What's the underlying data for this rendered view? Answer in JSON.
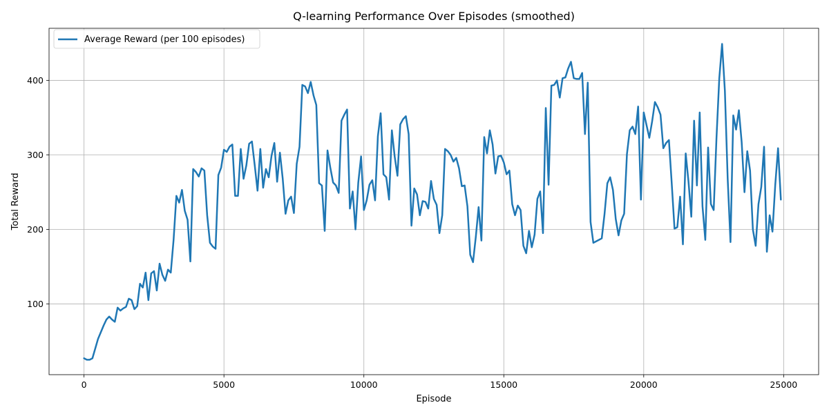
{
  "chart_data": {
    "type": "line",
    "title": "Q-learning Performance Over Episodes (smoothed)",
    "xlabel": "Episode",
    "ylabel": "Total Reward",
    "xlim": [
      -1250,
      26250
    ],
    "ylim": [
      5,
      470
    ],
    "xticks": [
      0,
      5000,
      10000,
      15000,
      20000,
      25000
    ],
    "yticks": [
      100,
      200,
      300,
      400
    ],
    "grid": true,
    "legend_location": "upper-left",
    "series": [
      {
        "name": "Average Reward (per 100 episodes)",
        "color": "#1f77b4",
        "points": [
          [
            0,
            27
          ],
          [
            100,
            25
          ],
          [
            200,
            25
          ],
          [
            300,
            27
          ],
          [
            400,
            40
          ],
          [
            500,
            53
          ],
          [
            600,
            62
          ],
          [
            700,
            71
          ],
          [
            800,
            79
          ],
          [
            900,
            83
          ],
          [
            1000,
            79
          ],
          [
            1100,
            76
          ],
          [
            1200,
            95
          ],
          [
            1300,
            91
          ],
          [
            1400,
            94
          ],
          [
            1500,
            96
          ],
          [
            1600,
            107
          ],
          [
            1700,
            105
          ],
          [
            1800,
            93
          ],
          [
            1900,
            97
          ],
          [
            2000,
            127
          ],
          [
            2100,
            122
          ],
          [
            2200,
            142
          ],
          [
            2300,
            105
          ],
          [
            2400,
            141
          ],
          [
            2500,
            144
          ],
          [
            2600,
            118
          ],
          [
            2700,
            154
          ],
          [
            2800,
            139
          ],
          [
            2900,
            131
          ],
          [
            3000,
            146
          ],
          [
            3100,
            142
          ],
          [
            3200,
            186
          ],
          [
            3300,
            245
          ],
          [
            3400,
            236
          ],
          [
            3500,
            253
          ],
          [
            3600,
            225
          ],
          [
            3700,
            213
          ],
          [
            3800,
            157
          ],
          [
            3900,
            281
          ],
          [
            4000,
            277
          ],
          [
            4100,
            271
          ],
          [
            4200,
            282
          ],
          [
            4300,
            279
          ],
          [
            4400,
            219
          ],
          [
            4500,
            182
          ],
          [
            4600,
            177
          ],
          [
            4700,
            174
          ],
          [
            4800,
            273
          ],
          [
            4900,
            283
          ],
          [
            5000,
            307
          ],
          [
            5100,
            304
          ],
          [
            5200,
            311
          ],
          [
            5300,
            314
          ],
          [
            5400,
            245
          ],
          [
            5500,
            245
          ],
          [
            5600,
            308
          ],
          [
            5700,
            268
          ],
          [
            5800,
            286
          ],
          [
            5900,
            315
          ],
          [
            6000,
            318
          ],
          [
            6100,
            286
          ],
          [
            6200,
            252
          ],
          [
            6300,
            308
          ],
          [
            6400,
            256
          ],
          [
            6500,
            281
          ],
          [
            6600,
            270
          ],
          [
            6700,
            299
          ],
          [
            6800,
            316
          ],
          [
            6900,
            264
          ],
          [
            7000,
            303
          ],
          [
            7100,
            268
          ],
          [
            7200,
            221
          ],
          [
            7300,
            239
          ],
          [
            7400,
            244
          ],
          [
            7500,
            222
          ],
          [
            7600,
            288
          ],
          [
            7700,
            311
          ],
          [
            7800,
            394
          ],
          [
            7900,
            392
          ],
          [
            8000,
            383
          ],
          [
            8100,
            398
          ],
          [
            8200,
            380
          ],
          [
            8300,
            367
          ],
          [
            8400,
            262
          ],
          [
            8500,
            259
          ],
          [
            8600,
            198
          ],
          [
            8700,
            306
          ],
          [
            8800,
            283
          ],
          [
            8900,
            263
          ],
          [
            9000,
            259
          ],
          [
            9100,
            249
          ],
          [
            9200,
            346
          ],
          [
            9300,
            354
          ],
          [
            9400,
            361
          ],
          [
            9500,
            228
          ],
          [
            9600,
            251
          ],
          [
            9700,
            200
          ],
          [
            9800,
            263
          ],
          [
            9900,
            298
          ],
          [
            10000,
            226
          ],
          [
            10100,
            239
          ],
          [
            10200,
            260
          ],
          [
            10300,
            266
          ],
          [
            10400,
            239
          ],
          [
            10500,
            325
          ],
          [
            10600,
            356
          ],
          [
            10700,
            274
          ],
          [
            10800,
            270
          ],
          [
            10900,
            240
          ],
          [
            11000,
            333
          ],
          [
            11100,
            298
          ],
          [
            11200,
            272
          ],
          [
            11300,
            341
          ],
          [
            11400,
            348
          ],
          [
            11500,
            352
          ],
          [
            11600,
            328
          ],
          [
            11700,
            205
          ],
          [
            11800,
            255
          ],
          [
            11900,
            247
          ],
          [
            12000,
            219
          ],
          [
            12100,
            238
          ],
          [
            12200,
            237
          ],
          [
            12300,
            228
          ],
          [
            12400,
            265
          ],
          [
            12500,
            241
          ],
          [
            12600,
            233
          ],
          [
            12700,
            195
          ],
          [
            12800,
            219
          ],
          [
            12900,
            308
          ],
          [
            13000,
            305
          ],
          [
            13100,
            300
          ],
          [
            13200,
            291
          ],
          [
            13300,
            296
          ],
          [
            13400,
            282
          ],
          [
            13500,
            258
          ],
          [
            13600,
            259
          ],
          [
            13700,
            231
          ],
          [
            13800,
            166
          ],
          [
            13900,
            156
          ],
          [
            14000,
            190
          ],
          [
            14100,
            230
          ],
          [
            14200,
            185
          ],
          [
            14300,
            324
          ],
          [
            14400,
            302
          ],
          [
            14500,
            333
          ],
          [
            14600,
            314
          ],
          [
            14700,
            275
          ],
          [
            14800,
            298
          ],
          [
            14900,
            299
          ],
          [
            15000,
            290
          ],
          [
            15100,
            274
          ],
          [
            15200,
            279
          ],
          [
            15300,
            234
          ],
          [
            15400,
            219
          ],
          [
            15500,
            232
          ],
          [
            15600,
            226
          ],
          [
            15700,
            178
          ],
          [
            15800,
            168
          ],
          [
            15900,
            198
          ],
          [
            16000,
            176
          ],
          [
            16100,
            193
          ],
          [
            16200,
            241
          ],
          [
            16300,
            251
          ],
          [
            16400,
            195
          ],
          [
            16500,
            363
          ],
          [
            16600,
            260
          ],
          [
            16700,
            393
          ],
          [
            16800,
            394
          ],
          [
            16900,
            400
          ],
          [
            17000,
            377
          ],
          [
            17100,
            403
          ],
          [
            17200,
            404
          ],
          [
            17300,
            416
          ],
          [
            17400,
            425
          ],
          [
            17500,
            403
          ],
          [
            17600,
            402
          ],
          [
            17700,
            402
          ],
          [
            17800,
            410
          ],
          [
            17900,
            328
          ],
          [
            18000,
            397
          ],
          [
            18100,
            210
          ],
          [
            18200,
            182
          ],
          [
            18300,
            184
          ],
          [
            18400,
            186
          ],
          [
            18500,
            188
          ],
          [
            18600,
            221
          ],
          [
            18700,
            262
          ],
          [
            18800,
            270
          ],
          [
            18900,
            253
          ],
          [
            19000,
            214
          ],
          [
            19100,
            192
          ],
          [
            19200,
            212
          ],
          [
            19300,
            221
          ],
          [
            19400,
            301
          ],
          [
            19500,
            333
          ],
          [
            19600,
            338
          ],
          [
            19700,
            328
          ],
          [
            19800,
            365
          ],
          [
            19900,
            240
          ],
          [
            20000,
            357
          ],
          [
            20100,
            340
          ],
          [
            20200,
            323
          ],
          [
            20300,
            345
          ],
          [
            20400,
            371
          ],
          [
            20500,
            364
          ],
          [
            20600,
            354
          ],
          [
            20700,
            309
          ],
          [
            20800,
            316
          ],
          [
            20900,
            320
          ],
          [
            21000,
            262
          ],
          [
            21100,
            201
          ],
          [
            21200,
            203
          ],
          [
            21300,
            244
          ],
          [
            21400,
            180
          ],
          [
            21500,
            302
          ],
          [
            21600,
            264
          ],
          [
            21700,
            217
          ],
          [
            21800,
            346
          ],
          [
            21900,
            259
          ],
          [
            22000,
            357
          ],
          [
            22100,
            231
          ],
          [
            22200,
            186
          ],
          [
            22300,
            310
          ],
          [
            22400,
            234
          ],
          [
            22500,
            226
          ],
          [
            22600,
            323
          ],
          [
            22700,
            403
          ],
          [
            22800,
            449
          ],
          [
            22900,
            386
          ],
          [
            23000,
            268
          ],
          [
            23100,
            183
          ],
          [
            23200,
            353
          ],
          [
            23300,
            334
          ],
          [
            23400,
            360
          ],
          [
            23500,
            317
          ],
          [
            23600,
            250
          ],
          [
            23700,
            305
          ],
          [
            23800,
            279
          ],
          [
            23900,
            200
          ],
          [
            24000,
            178
          ],
          [
            24100,
            234
          ],
          [
            24200,
            257
          ],
          [
            24300,
            311
          ],
          [
            24400,
            170
          ],
          [
            24500,
            219
          ],
          [
            24600,
            197
          ],
          [
            24700,
            260
          ],
          [
            24800,
            309
          ],
          [
            24900,
            240
          ]
        ]
      }
    ]
  }
}
